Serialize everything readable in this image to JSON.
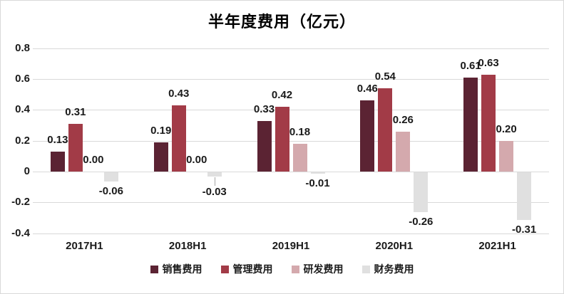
{
  "chart_data": {
    "type": "bar",
    "title": "半年度费用（亿元）",
    "categories": [
      "2017H1",
      "2018H1",
      "2019H1",
      "2020H1",
      "2021H1"
    ],
    "series": [
      {
        "key": "sales-expense",
        "name": "销售费用",
        "color": "#5b2333",
        "values": [
          0.13,
          0.19,
          0.33,
          0.46,
          0.61
        ]
      },
      {
        "key": "admin-expense",
        "name": "管理费用",
        "color": "#a23b47",
        "values": [
          0.31,
          0.43,
          0.42,
          0.54,
          0.63
        ]
      },
      {
        "key": "rnd-expense",
        "name": "研发费用",
        "color": "#d4a9ad",
        "values": [
          0.0,
          0.0,
          0.18,
          0.26,
          0.2
        ]
      },
      {
        "key": "finance-expense",
        "name": "财务费用",
        "color": "#e0e0e0",
        "values": [
          -0.06,
          -0.03,
          -0.01,
          -0.26,
          -0.31
        ]
      }
    ],
    "y_ticks": [
      "0.8",
      "0.6",
      "0.4",
      "0.2",
      "0",
      "-0.2",
      "-0.4"
    ],
    "ylim": [
      -0.4,
      0.8
    ],
    "grid": true,
    "legend_position": "bottom",
    "value_label_decimals": 2,
    "callout_labels": [
      {
        "category": "2018H1",
        "series": "财务费用",
        "value": -0.03
      }
    ],
    "colors": {
      "gridline": "#d9d9d9",
      "text": "#1a1a1a",
      "border": "#d9d9d9",
      "background": "#ffffff"
    }
  }
}
